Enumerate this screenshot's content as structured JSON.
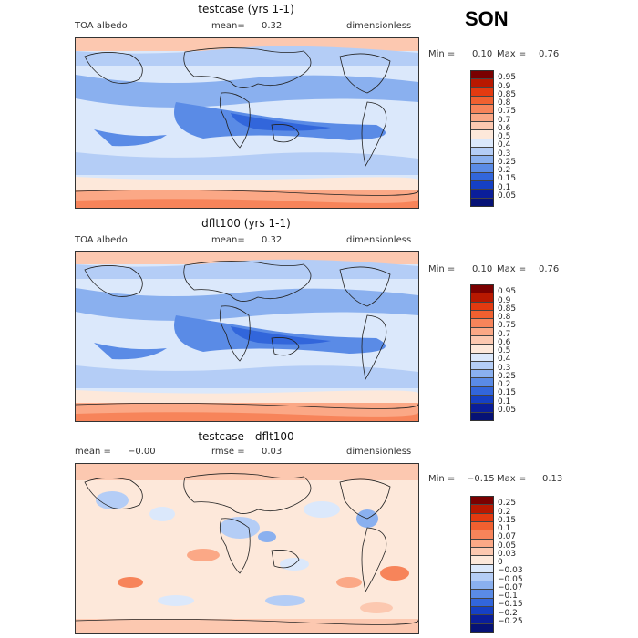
{
  "season": "SON",
  "panels": [
    {
      "title": "testcase (yrs 1-1)",
      "left_label": "TOA albedo",
      "mid_label": "mean=",
      "mid_value": "0.32",
      "right_label": "dimensionless",
      "min_label": "Min =",
      "min_value": "0.10",
      "max_label": "Max =",
      "max_value": "0.76",
      "colorbar_labels": [
        "0.95",
        "0.9",
        "0.85",
        "0.8",
        "0.75",
        "0.7",
        "0.6",
        "0.5",
        "0.4",
        "0.3",
        "0.25",
        "0.2",
        "0.15",
        "0.1",
        "0.05"
      ],
      "colorbar_colors": [
        "#7a0000",
        "#b81800",
        "#e33a10",
        "#f06030",
        "#f7845a",
        "#fba886",
        "#fcc8b0",
        "#fde8da",
        "#dbe8fb",
        "#b4cdf6",
        "#8ab0ef",
        "#5a8be6",
        "#3266db",
        "#1540c4",
        "#0a1e9a",
        "#061276"
      ]
    },
    {
      "title": "dflt100 (yrs 1-1)",
      "left_label": "TOA albedo",
      "mid_label": "mean=",
      "mid_value": "0.32",
      "right_label": "dimensionless",
      "min_label": "Min =",
      "min_value": "0.10",
      "max_label": "Max =",
      "max_value": "0.76",
      "colorbar_labels": [
        "0.95",
        "0.9",
        "0.85",
        "0.8",
        "0.75",
        "0.7",
        "0.6",
        "0.5",
        "0.4",
        "0.3",
        "0.25",
        "0.2",
        "0.15",
        "0.1",
        "0.05"
      ],
      "colorbar_colors": [
        "#7a0000",
        "#b81800",
        "#e33a10",
        "#f06030",
        "#f7845a",
        "#fba886",
        "#fcc8b0",
        "#fde8da",
        "#dbe8fb",
        "#b4cdf6",
        "#8ab0ef",
        "#5a8be6",
        "#3266db",
        "#1540c4",
        "#0a1e9a",
        "#061276"
      ]
    },
    {
      "title": "testcase - dflt100",
      "left_label": "mean =",
      "left_value": "−0.00",
      "mid_label": "rmse =",
      "mid_value": "0.03",
      "right_label": "dimensionless",
      "min_label": "Min =",
      "min_value": "−0.15",
      "max_label": "Max =",
      "max_value": "0.13",
      "colorbar_labels": [
        "0.25",
        "0.2",
        "0.15",
        "0.1",
        "0.07",
        "0.05",
        "0.03",
        "0",
        "−0.03",
        "−0.05",
        "−0.07",
        "−0.1",
        "−0.15",
        "−0.2",
        "−0.25"
      ],
      "colorbar_colors": [
        "#7a0000",
        "#b81800",
        "#e33a10",
        "#f06030",
        "#f7845a",
        "#fba886",
        "#fcc8b0",
        "#fde8da",
        "#dbe8fb",
        "#b4cdf6",
        "#8ab0ef",
        "#5a8be6",
        "#3266db",
        "#1540c4",
        "#0a1e9a",
        "#061276"
      ]
    }
  ]
}
